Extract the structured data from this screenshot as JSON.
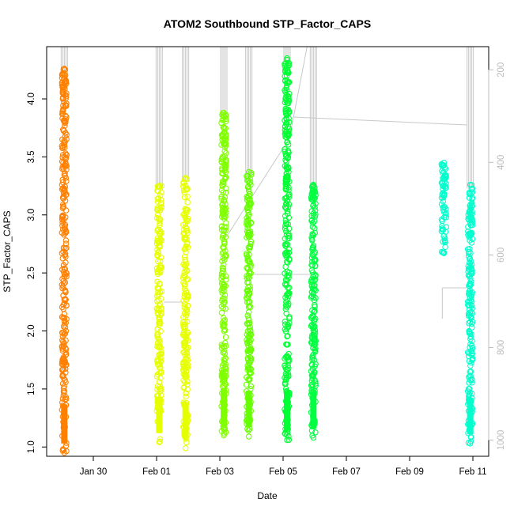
{
  "chart_data": {
    "type": "scatter",
    "title": "ATOM2 Southbound STP_Factor_CAPS",
    "xlabel": "Date",
    "ylabel": "STP_Factor_CAPS",
    "x_tick_labels": [
      "Jan 30",
      "Feb 01",
      "Feb 03",
      "Feb 05",
      "Feb 07",
      "Feb 09",
      "Feb 11"
    ],
    "y_tick_labels": [
      "1.0",
      "1.5",
      "2.0",
      "2.5",
      "3.0",
      "3.5",
      "4.0"
    ],
    "y_ticks": [
      1.0,
      1.5,
      2.0,
      2.5,
      3.0,
      3.5,
      4.0
    ],
    "ylim": [
      0.92,
      4.45
    ],
    "secondary_y_tick_labels": [
      "200",
      "400",
      "600",
      "800",
      "1000"
    ],
    "secondary_y_ticks": [
      200,
      400,
      600,
      800,
      1000
    ],
    "secondary_ylim_top_to_bottom": [
      150,
      1035
    ],
    "series": [
      {
        "x_day": "Jan 29 02:00",
        "y_range": [
          0.95,
          4.26
        ],
        "color": "#FF8000"
      },
      {
        "x_day": "Feb 01 02:00",
        "y_range": [
          1.04,
          3.25
        ],
        "color": "#E6FF00"
      },
      {
        "x_day": "Feb 01 22:00",
        "y_range": [
          0.99,
          3.32
        ],
        "color": "#E6FF00"
      },
      {
        "x_day": "Feb 03 03:00",
        "y_range": [
          1.1,
          3.88
        ],
        "color": "#80FF00"
      },
      {
        "x_day": "Feb 03 22:00",
        "y_range": [
          1.09,
          3.37
        ],
        "color": "#66FF00"
      },
      {
        "x_day": "Feb 05 03:00",
        "y_range": [
          1.06,
          4.35
        ],
        "color": "#00FF33"
      },
      {
        "x_day": "Feb 05 23:00",
        "y_range": [
          1.08,
          3.26
        ],
        "color": "#00FF40"
      },
      {
        "x_day": "Feb 10 02:00",
        "y_range": [
          2.67,
          3.45
        ],
        "color": "#00FFCC"
      },
      {
        "x_day": "Feb 10 22:00",
        "y_range": [
          1.03,
          3.26
        ],
        "color": "#00FFCC"
      }
    ]
  }
}
